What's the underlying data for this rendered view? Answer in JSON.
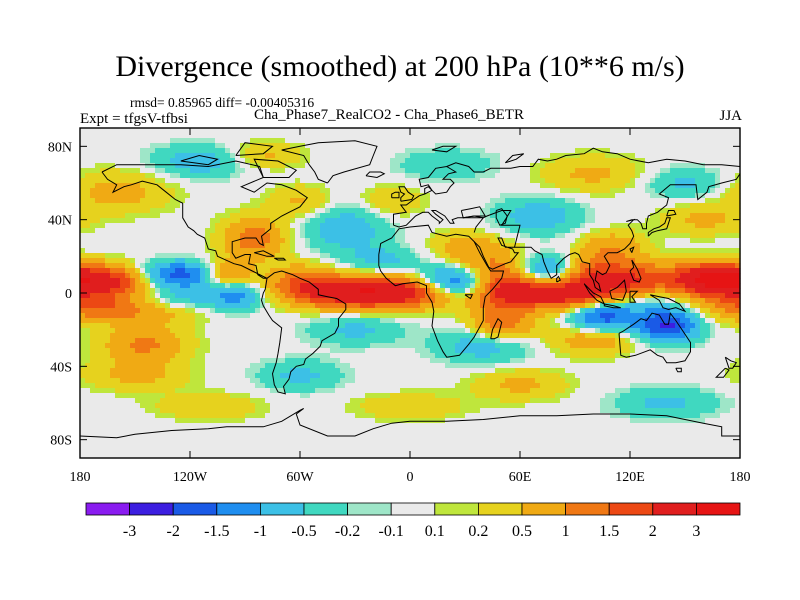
{
  "header": {
    "title": "Divergence (smoothed) at 200 hPa (10**6 m/s)",
    "stats": "rmsd= 0.85965 diff= -0.00405316",
    "experiment": "Expt = tfgsV-tfbsi",
    "cases": "Cha_Phase7_RealCO2 - Cha_Phase6_BETR",
    "season": "JJA"
  },
  "chart_data": {
    "type": "heatmap",
    "title": "Divergence (smoothed) at 200 hPa (10**6 m/s)",
    "projection": "cylindrical equidistant world map with coastlines",
    "xlim": [
      -180,
      180
    ],
    "ylim": [
      -90,
      90
    ],
    "x_ticks": [
      {
        "value": -180,
        "label": "180"
      },
      {
        "value": -120,
        "label": "120W"
      },
      {
        "value": -60,
        "label": "60W"
      },
      {
        "value": 0,
        "label": "0"
      },
      {
        "value": 60,
        "label": "60E"
      },
      {
        "value": 120,
        "label": "120E"
      },
      {
        "value": 180,
        "label": "180"
      }
    ],
    "y_ticks": [
      {
        "value": 80,
        "label": "80N"
      },
      {
        "value": 40,
        "label": "40N"
      },
      {
        "value": 0,
        "label": "0"
      },
      {
        "value": -40,
        "label": "40S"
      },
      {
        "value": -80,
        "label": "80S"
      }
    ],
    "colorbar": {
      "labels": [
        "-3",
        "-2",
        "-1.5",
        "-1",
        "-0.5",
        "-0.2",
        "-0.1",
        "0.1",
        "0.2",
        "0.5",
        "1",
        "1.5",
        "2",
        "3"
      ],
      "colors": [
        "#8a1cf0",
        "#3c1ee0",
        "#1a5ae6",
        "#1f8ef0",
        "#3cc0e6",
        "#40d8c0",
        "#9ee6c8",
        "#eaeaea",
        "#bfe63c",
        "#e6d21e",
        "#f0aa14",
        "#f07814",
        "#ec4814",
        "#e01e1e",
        "#e61414"
      ]
    },
    "blobs": [
      {
        "lon": -165,
        "lat": 7,
        "value": 2.4,
        "rlon": 22,
        "rlat": 6
      },
      {
        "lon": -175,
        "lat": -6,
        "value": 1.2,
        "rlon": 20,
        "rlat": 6
      },
      {
        "lon": -128,
        "lat": 10,
        "value": -2.1,
        "rlon": 18,
        "rlat": 5
      },
      {
        "lon": -125,
        "lat": -2,
        "value": -0.8,
        "rlon": 22,
        "rlat": 6
      },
      {
        "lon": -145,
        "lat": -10,
        "value": 0.8,
        "rlon": 24,
        "rlat": 5
      },
      {
        "lon": -100,
        "lat": 9,
        "value": 1.6,
        "rlon": 10,
        "rlat": 6
      },
      {
        "lon": -85,
        "lat": 30,
        "value": 1.3,
        "rlon": 12,
        "rlat": 8
      },
      {
        "lon": -95,
        "lat": 0,
        "value": -1.2,
        "rlon": 10,
        "rlat": 6
      },
      {
        "lon": -145,
        "lat": -28,
        "value": 1.1,
        "rlon": 16,
        "rlat": 7
      },
      {
        "lon": -160,
        "lat": 55,
        "value": 0.7,
        "rlon": 20,
        "rlat": 8
      },
      {
        "lon": -115,
        "lat": 72,
        "value": -0.8,
        "rlon": 18,
        "rlat": 6
      },
      {
        "lon": -80,
        "lat": 75,
        "value": 0.6,
        "rlon": 14,
        "rlat": 5
      },
      {
        "lon": -35,
        "lat": 35,
        "value": -0.8,
        "rlon": 16,
        "rlat": 9
      },
      {
        "lon": -60,
        "lat": 50,
        "value": 0.6,
        "rlon": 12,
        "rlat": 6
      },
      {
        "lon": -60,
        "lat": 5,
        "value": 1.3,
        "rlon": 14,
        "rlat": 7
      },
      {
        "lon": -30,
        "lat": 0,
        "value": 2.6,
        "rlon": 20,
        "rlat": 6
      },
      {
        "lon": 5,
        "lat": 1,
        "value": 2.1,
        "rlon": 18,
        "rlat": 6
      },
      {
        "lon": -15,
        "lat": 18,
        "value": -0.6,
        "rlon": 14,
        "rlat": 5
      },
      {
        "lon": 25,
        "lat": 5,
        "value": -2.4,
        "rlon": 16,
        "rlat": 6
      },
      {
        "lon": 50,
        "lat": 6,
        "value": 2.4,
        "rlon": 14,
        "rlat": 10
      },
      {
        "lon": 30,
        "lat": 25,
        "value": 0.8,
        "rlon": 12,
        "rlat": 6
      },
      {
        "lon": 85,
        "lat": 0,
        "value": 2.6,
        "rlon": 22,
        "rlat": 6
      },
      {
        "lon": 75,
        "lat": 12,
        "value": -1.8,
        "rlon": 16,
        "rlat": 6
      },
      {
        "lon": 95,
        "lat": 12,
        "value": 1.6,
        "rlon": 12,
        "rlat": 6
      },
      {
        "lon": 110,
        "lat": 25,
        "value": 0.9,
        "rlon": 12,
        "rlat": 6
      },
      {
        "lon": 70,
        "lat": 42,
        "value": -0.8,
        "rlon": 16,
        "rlat": 7
      },
      {
        "lon": 120,
        "lat": 8,
        "value": 1.6,
        "rlon": 14,
        "rlat": 7
      },
      {
        "lon": 150,
        "lat": 6,
        "value": 0.8,
        "rlon": 18,
        "rlat": 7
      },
      {
        "lon": 165,
        "lat": 8,
        "value": 2.0,
        "rlon": 14,
        "rlat": 6
      },
      {
        "lon": 130,
        "lat": -5,
        "value": -0.7,
        "rlon": 16,
        "rlat": 6
      },
      {
        "lon": 105,
        "lat": -13,
        "value": -1.8,
        "rlon": 12,
        "rlat": 6
      },
      {
        "lon": 140,
        "lat": -18,
        "value": -2.1,
        "rlon": 12,
        "rlat": 6
      },
      {
        "lon": 100,
        "lat": -25,
        "value": 0.9,
        "rlon": 16,
        "rlat": 6
      },
      {
        "lon": 40,
        "lat": -28,
        "value": -0.8,
        "rlon": 18,
        "rlat": 7
      },
      {
        "lon": 50,
        "lat": -18,
        "value": 1.3,
        "rlon": 12,
        "rlat": 6
      },
      {
        "lon": -30,
        "lat": -20,
        "value": -0.6,
        "rlon": 18,
        "rlat": 6
      },
      {
        "lon": -150,
        "lat": -45,
        "value": 0.6,
        "rlon": 20,
        "rlat": 6
      },
      {
        "lon": -60,
        "lat": -45,
        "value": -0.6,
        "rlon": 16,
        "rlat": 6
      },
      {
        "lon": 60,
        "lat": -50,
        "value": 0.6,
        "rlon": 18,
        "rlat": 6
      },
      {
        "lon": 0,
        "lat": -62,
        "value": 0.5,
        "rlon": 20,
        "rlat": 5
      },
      {
        "lon": 140,
        "lat": -60,
        "value": -0.6,
        "rlon": 20,
        "rlat": 6
      },
      {
        "lon": -110,
        "lat": -62,
        "value": 0.5,
        "rlon": 20,
        "rlat": 5
      },
      {
        "lon": 100,
        "lat": 65,
        "value": 0.6,
        "rlon": 20,
        "rlat": 7
      },
      {
        "lon": 20,
        "lat": 70,
        "value": -0.5,
        "rlon": 18,
        "rlat": 6
      },
      {
        "lon": 150,
        "lat": 60,
        "value": -0.6,
        "rlon": 16,
        "rlat": 6
      },
      {
        "lon": 160,
        "lat": 40,
        "value": 0.6,
        "rlon": 16,
        "rlat": 6
      },
      {
        "lon": -10,
        "lat": 50,
        "value": 0.5,
        "rlon": 12,
        "rlat": 6
      }
    ]
  }
}
